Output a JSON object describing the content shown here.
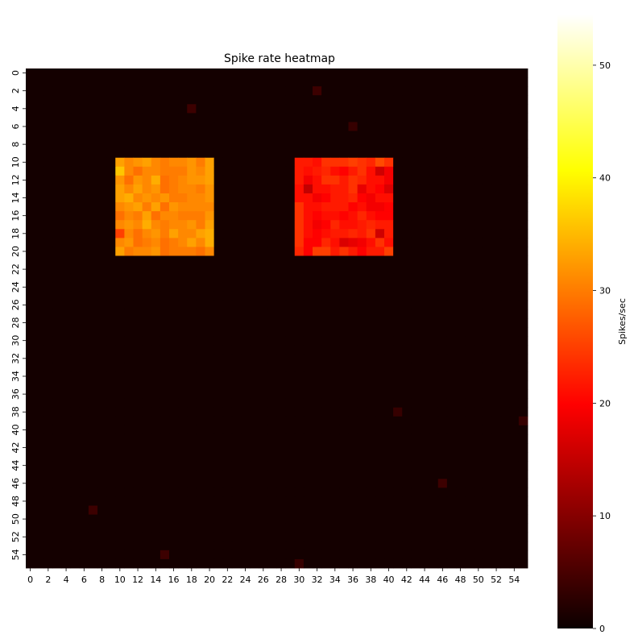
{
  "chart_data": {
    "type": "heatmap",
    "title": "Spike rate heatmap",
    "xlabel": "",
    "ylabel": "",
    "grid_size": [
      56,
      56
    ],
    "x_ticks": [
      0,
      2,
      4,
      6,
      8,
      10,
      12,
      14,
      16,
      18,
      20,
      22,
      24,
      26,
      28,
      30,
      32,
      34,
      36,
      38,
      40,
      42,
      44,
      46,
      48,
      50,
      52,
      54
    ],
    "y_ticks": [
      0,
      2,
      4,
      6,
      8,
      10,
      12,
      14,
      16,
      18,
      20,
      22,
      24,
      26,
      28,
      30,
      32,
      34,
      36,
      38,
      40,
      42,
      44,
      46,
      48,
      50,
      52,
      54
    ],
    "background_value": 0.8,
    "blocks": [
      {
        "row_start": 10,
        "col_start": 10,
        "values": [
          [
            33,
            31,
            32,
            33,
            31,
            30,
            31,
            31,
            32,
            30,
            33
          ],
          [
            36,
            31,
            29,
            31,
            31,
            30,
            30,
            30,
            32,
            31,
            33
          ],
          [
            32,
            29,
            32,
            31,
            34,
            29,
            30,
            31,
            32,
            32,
            33
          ],
          [
            33,
            31,
            33,
            31,
            32,
            29,
            30,
            31,
            31,
            30,
            32
          ],
          [
            33,
            34,
            31,
            32,
            31,
            32,
            30,
            30,
            31,
            31,
            32
          ],
          [
            31,
            32,
            33,
            30,
            33,
            29,
            32,
            31,
            31,
            31,
            31
          ],
          [
            29,
            31,
            30,
            33,
            29,
            31,
            31,
            30,
            30,
            30,
            32
          ],
          [
            31,
            32,
            31,
            34,
            31,
            30,
            31,
            31,
            32,
            30,
            33
          ],
          [
            25,
            31,
            29,
            31,
            32,
            30,
            33,
            31,
            31,
            33,
            34
          ],
          [
            31,
            32,
            29,
            30,
            31,
            29,
            30,
            31,
            33,
            31,
            34
          ],
          [
            33,
            30,
            31,
            31,
            32,
            29,
            30,
            30,
            30,
            29,
            31
          ]
        ]
      },
      {
        "row_start": 10,
        "col_start": 30,
        "values": [
          [
            22,
            22,
            21,
            24,
            24,
            24,
            25,
            24,
            23,
            26,
            24
          ],
          [
            22,
            21,
            22,
            23,
            21,
            20,
            22,
            24,
            21,
            16,
            19
          ],
          [
            22,
            19,
            21,
            24,
            24,
            22,
            24,
            23,
            21,
            21,
            19
          ],
          [
            21,
            15,
            21,
            21,
            22,
            22,
            24,
            18,
            21,
            20,
            17
          ],
          [
            21,
            21,
            19,
            20,
            22,
            22,
            23,
            20,
            19,
            21,
            21
          ],
          [
            24,
            21,
            21,
            22,
            22,
            22,
            20,
            21,
            19,
            19,
            20
          ],
          [
            24,
            21,
            20,
            21,
            21,
            20,
            21,
            23,
            21,
            20,
            20
          ],
          [
            24,
            21,
            19,
            20,
            23,
            21,
            21,
            22,
            23,
            22,
            22
          ],
          [
            24,
            21,
            20,
            21,
            22,
            22,
            23,
            22,
            24,
            16,
            22
          ],
          [
            24,
            20,
            20,
            23,
            21,
            17,
            18,
            19,
            21,
            24,
            21
          ],
          [
            23,
            20,
            25,
            25,
            22,
            24,
            22,
            20,
            22,
            22,
            25
          ]
        ]
      }
    ],
    "isolated_cells": [
      {
        "row": 2,
        "col": 32,
        "value": 4
      },
      {
        "row": 4,
        "col": 18,
        "value": 4
      },
      {
        "row": 6,
        "col": 36,
        "value": 3.5
      },
      {
        "row": 38,
        "col": 41,
        "value": 3.5
      },
      {
        "row": 39,
        "col": 55,
        "value": 3.5
      },
      {
        "row": 46,
        "col": 46,
        "value": 4
      },
      {
        "row": 49,
        "col": 7,
        "value": 4
      },
      {
        "row": 54,
        "col": 15,
        "value": 4
      },
      {
        "row": 55,
        "col": 30,
        "value": 3.5
      }
    ],
    "colormap": "hot",
    "colorbar": {
      "label": "Spikes/sec",
      "range": [
        0,
        54.5
      ],
      "ticks": [
        0,
        10,
        20,
        30,
        40,
        50
      ]
    }
  }
}
